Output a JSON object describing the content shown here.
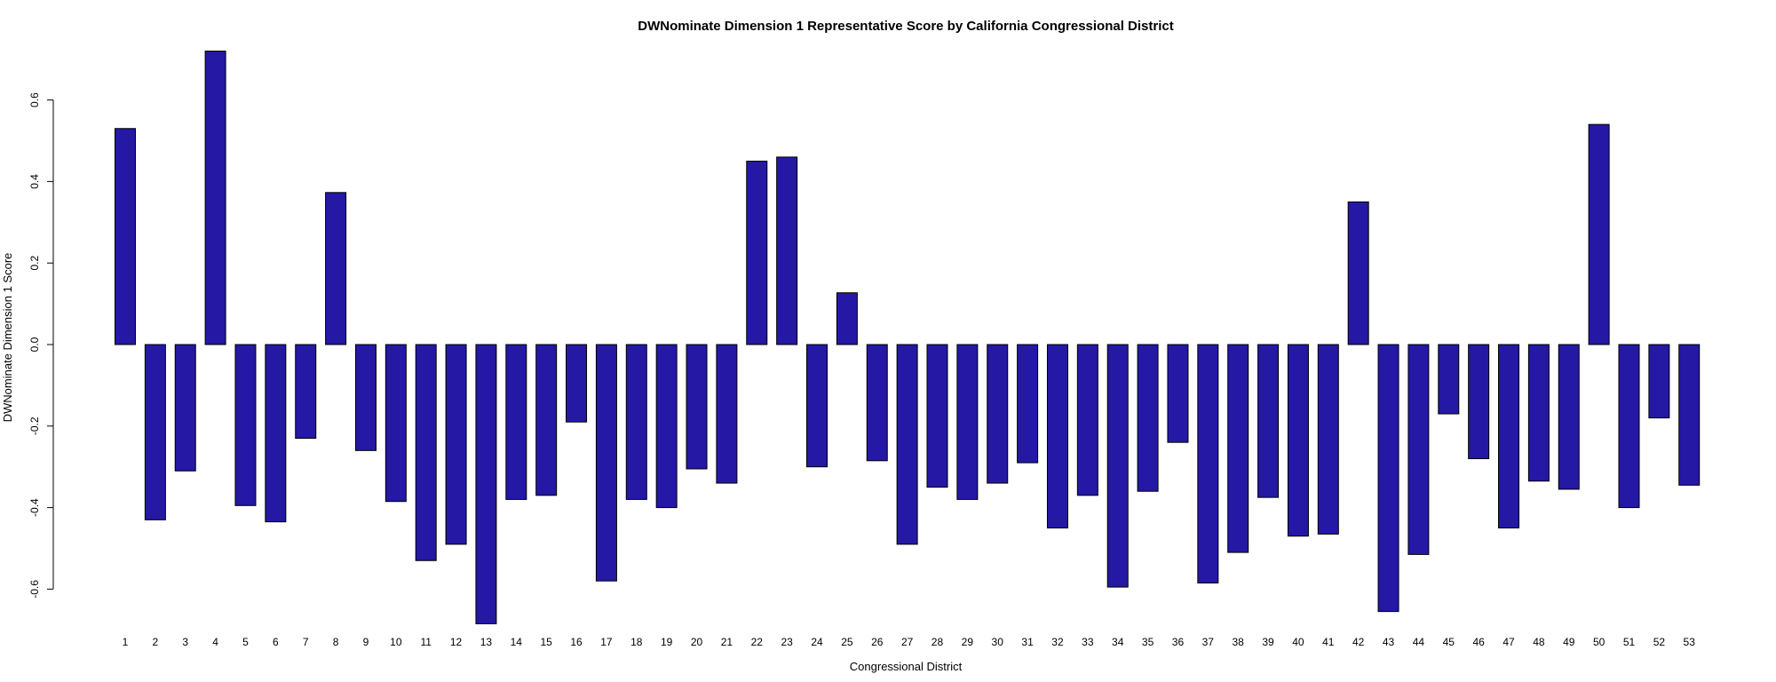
{
  "chart_data": {
    "type": "bar",
    "title": "DWNominate Dimension 1 Representative Score by California Congressional District",
    "xlabel": "Congressional District",
    "ylabel": "DWNominate Dimension 1 Score",
    "categories": [
      "1",
      "2",
      "3",
      "4",
      "5",
      "6",
      "7",
      "8",
      "9",
      "10",
      "11",
      "12",
      "13",
      "14",
      "15",
      "16",
      "17",
      "18",
      "19",
      "20",
      "21",
      "22",
      "23",
      "24",
      "25",
      "26",
      "27",
      "28",
      "29",
      "30",
      "31",
      "32",
      "33",
      "34",
      "35",
      "36",
      "37",
      "38",
      "39",
      "40",
      "41",
      "42",
      "43",
      "44",
      "45",
      "46",
      "47",
      "48",
      "49",
      "50",
      "51",
      "52",
      "53"
    ],
    "values": [
      0.53,
      -0.43,
      -0.31,
      0.72,
      -0.395,
      -0.435,
      -0.23,
      0.373,
      -0.26,
      -0.385,
      -0.53,
      -0.49,
      -0.685,
      -0.38,
      -0.37,
      -0.19,
      -0.58,
      -0.38,
      -0.4,
      -0.305,
      -0.34,
      0.45,
      0.46,
      -0.3,
      0.127,
      -0.285,
      -0.49,
      -0.35,
      -0.38,
      -0.34,
      -0.29,
      -0.45,
      -0.37,
      -0.595,
      -0.36,
      -0.24,
      -0.585,
      -0.51,
      -0.375,
      -0.47,
      -0.465,
      0.35,
      -0.655,
      -0.515,
      -0.17,
      -0.28,
      -0.45,
      -0.335,
      -0.355,
      0.54,
      -0.4,
      -0.18,
      -0.345
    ],
    "yticks": [
      "-0.6",
      "-0.4",
      "-0.2",
      "0.0",
      "0.2",
      "0.4",
      "0.6"
    ],
    "ylim": [
      -0.72,
      0.75
    ],
    "bar_color": "#2418A4",
    "grid": false,
    "legend": "none"
  }
}
